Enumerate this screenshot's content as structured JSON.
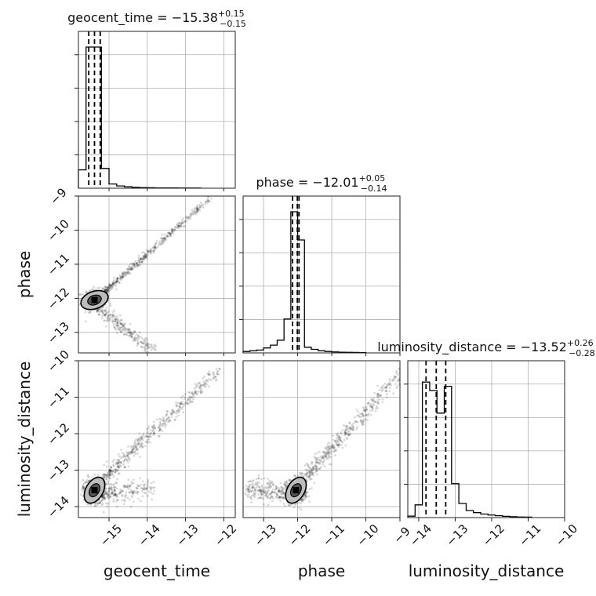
{
  "chart_data": {
    "type": "corner",
    "parameters": [
      {
        "name": "geocent_time",
        "label": "geocent_time",
        "title": {
          "prefix": "geocent_time = ",
          "value": "−15.38",
          "plus": "+0.15",
          "minus": "−0.15"
        },
        "range": [
          -15.8,
          -11.7
        ],
        "ticks": [
          -15,
          -14,
          -13,
          -12
        ],
        "tick_labels": [
          "−15",
          "−14",
          "−13",
          "−12"
        ],
        "quantiles": [
          -15.53,
          -15.38,
          -15.23
        ],
        "hist": {
          "edges": [
            -15.8,
            -15.6,
            -15.4,
            -15.2,
            -15.0,
            -14.8,
            -14.6,
            -14.4,
            -14.2,
            -14.0,
            -13.8,
            -13.6,
            -13.4,
            -13.2,
            -13.0,
            -12.8,
            -12.6
          ],
          "counts": [
            0.13,
            1.0,
            1.0,
            0.14,
            0.03,
            0.016,
            0.01,
            0.006,
            0.004,
            0.003,
            0.002,
            0.002,
            0.002,
            0.001,
            0.001,
            0.001
          ]
        }
      },
      {
        "name": "phase",
        "label": "phase",
        "title": {
          "prefix": "phase = ",
          "value": "−12.01",
          "plus": "+0.05",
          "minus": "−0.14"
        },
        "range": [
          -13.6,
          -9.0
        ],
        "ticks": [
          -13,
          -12,
          -11,
          -10,
          -9
        ],
        "tick_labels": [
          "−13",
          "−12",
          "−11",
          "−10",
          "−9"
        ],
        "quantiles": [
          -12.15,
          -12.01,
          -11.96
        ],
        "hist": {
          "edges": [
            -13.6,
            -13.4,
            -13.2,
            -13.0,
            -12.8,
            -12.6,
            -12.4,
            -12.2,
            -12.0,
            -11.8,
            -11.6,
            -11.4,
            -11.2,
            -11.0,
            -10.8,
            -10.6,
            -10.4,
            -10.2,
            -10.0
          ],
          "counts": [
            0.01,
            0.015,
            0.02,
            0.035,
            0.055,
            0.09,
            0.24,
            1.0,
            0.8,
            0.04,
            0.025,
            0.015,
            0.01,
            0.007,
            0.005,
            0.004,
            0.003,
            0.002
          ]
        }
      },
      {
        "name": "luminosity_distance",
        "label": "luminosity_distance",
        "title": {
          "prefix": "luminosity_distance = ",
          "value": "−13.52",
          "plus": "+0.26",
          "minus": "−0.28"
        },
        "range": [
          -14.3,
          -10.0
        ],
        "ticks": [
          -14,
          -13,
          -12,
          -11,
          -10
        ],
        "tick_labels": [
          "−14",
          "−13",
          "−12",
          "−11",
          "−10"
        ],
        "quantiles": [
          -13.8,
          -13.52,
          -13.26
        ],
        "hist": {
          "edges": [
            -14.3,
            -14.1,
            -13.9,
            -13.7,
            -13.5,
            -13.3,
            -13.1,
            -12.9,
            -12.7,
            -12.5,
            -12.3,
            -12.1,
            -11.9,
            -11.7,
            -11.5,
            -11.3,
            -11.1,
            -10.9
          ],
          "counts": [
            0.01,
            0.09,
            0.96,
            0.9,
            0.74,
            0.93,
            0.24,
            0.1,
            0.05,
            0.035,
            0.025,
            0.018,
            0.013,
            0.009,
            0.006,
            0.004,
            0.003
          ]
        }
      }
    ],
    "grid": true
  }
}
